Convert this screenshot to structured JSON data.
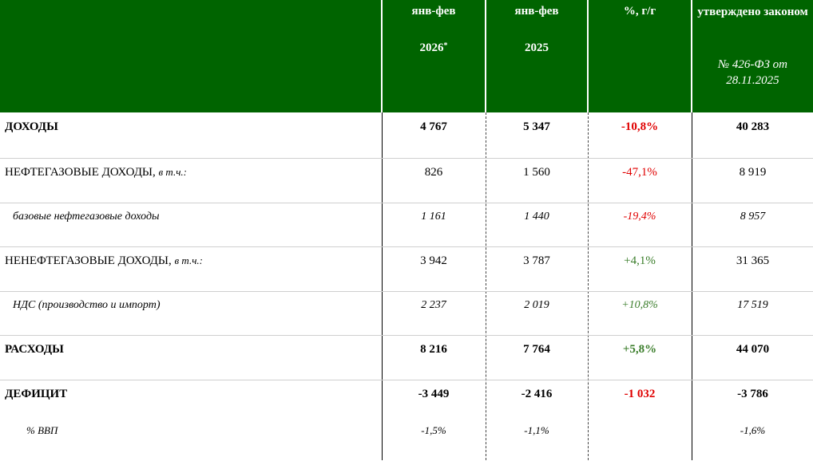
{
  "header": {
    "col1": {
      "line1": "янв-фев",
      "line2": "2026",
      "sup": "*"
    },
    "col2": {
      "line1": "янв-фев",
      "line2": "2025"
    },
    "col3": {
      "line1": "%, г/г"
    },
    "col4": {
      "line1": "утверждено законом",
      "line2": "№ 426-ФЗ от 28.11.2025"
    }
  },
  "rows": [
    {
      "label": "ДОХОДЫ",
      "suffix": "",
      "v2026": "4 767",
      "v2025": "5 347",
      "pct": "-10,8%",
      "law": "40 283"
    },
    {
      "label": "НЕФТЕГАЗОВЫЕ ДОХОДЫ,",
      "suffix": "в т.ч.:",
      "v2026": "826",
      "v2025": "1 560",
      "pct": "-47,1%",
      "law": "8 919"
    },
    {
      "label": "базовые нефтегазовые доходы",
      "suffix": "",
      "v2026": "1 161",
      "v2025": "1 440",
      "pct": "-19,4%",
      "law": "8 957"
    },
    {
      "label": "НЕНЕФТЕГАЗОВЫЕ ДОХОДЫ,",
      "suffix": "в т.ч.:",
      "v2026": "3 942",
      "v2025": "3 787",
      "pct": "+4,1%",
      "law": "31 365"
    },
    {
      "label": "НДС (производство и импорт)",
      "suffix": "",
      "v2026": "2 237",
      "v2025": "2 019",
      "pct": "+10,8%",
      "law": "17 519"
    },
    {
      "label": "РАСХОДЫ",
      "suffix": "",
      "v2026": "8 216",
      "v2025": "7 764",
      "pct": "+5,8%",
      "law": "44 070"
    },
    {
      "label": "ДЕФИЦИТ",
      "suffix": "",
      "v2026": "-3 449",
      "v2025": "-2 416",
      "pct": "-1 032",
      "law": "-3 786"
    },
    {
      "label": "% ВВП",
      "suffix": "",
      "v2026": "-1,5%",
      "v2025": "-1,1%",
      "pct": "",
      "law": "-1,6%"
    }
  ],
  "colors": {
    "header_bg": "#006400",
    "negative": "#e00000",
    "positive": "#3a7d2a"
  }
}
